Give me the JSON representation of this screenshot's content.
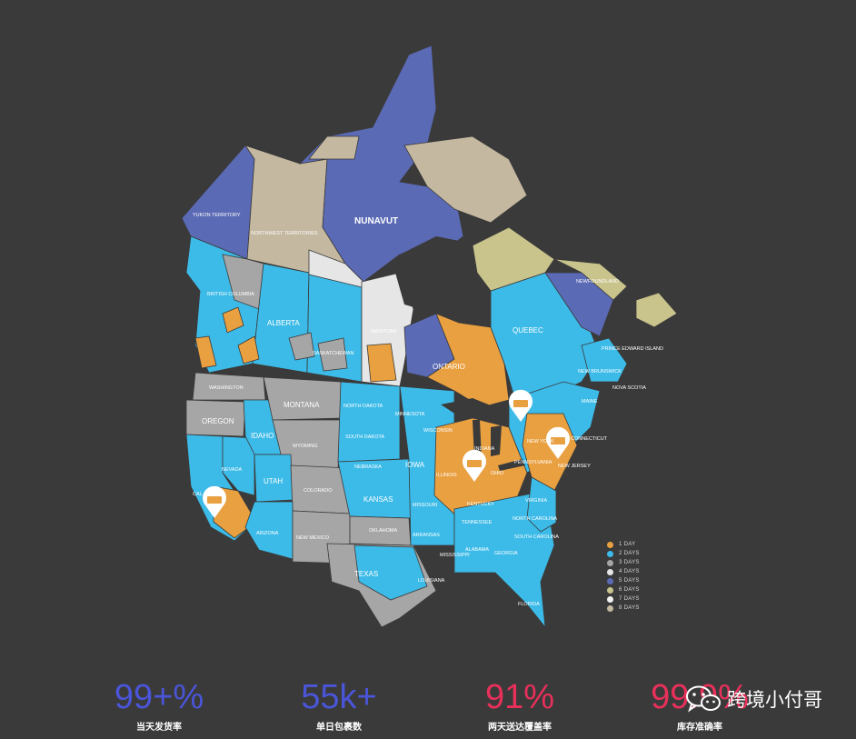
{
  "map": {
    "colors": {
      "day1": "#e9a040",
      "day2": "#3dbbe8",
      "day3": "#a6a6a6",
      "day4": "#e6e6e6",
      "day5": "#5b6ab5",
      "day6": "#c9c38c",
      "day7": "#f3f3f3",
      "day8": "#c4b8a0",
      "border": "#3a3a3a",
      "marker": "#ffffff",
      "marker_icon": "#e9a040"
    },
    "labels": {
      "yukon": "YUKON TERRITORY",
      "nwt": "NORTHWEST TERRITORIES",
      "nunavut": "NUNAVUT",
      "bc": "BRITISH COLUMBIA",
      "alberta": "ALBERTA",
      "sask": "SASKATCHEWAN",
      "manitoba": "MANITOBA",
      "ontario": "ONTARIO",
      "quebec": "QUEBEC",
      "newfoundland": "NEWFOUNDLAND",
      "pei": "PRINCE EDWARD ISLAND",
      "nova_scotia": "NOVA SCOTIA",
      "new_brunswick": "NEW BRUNSWICK",
      "maine": "MAINE",
      "washington": "WASHINGTON",
      "oregon": "OREGON",
      "idaho": "IDAHO",
      "montana": "MONTANA",
      "wyoming": "WYOMING",
      "nevada": "NEVADA",
      "utah": "UTAH",
      "colorado": "COLORADO",
      "arizona": "ARIZONA",
      "new_mexico": "NEW MEXICO",
      "california": "CAL",
      "north_dakota": "NORTH DAKOTA",
      "south_dakota": "SOUTH DAKOTA",
      "nebraska": "NEBRASKA",
      "kansas": "KANSAS",
      "oklahoma": "OKLAHOMA",
      "texas": "TEXAS",
      "minnesota": "MINNESOTA",
      "iowa": "IOWA",
      "missouri": "MISSOURI",
      "arkansas": "ARKANSAS",
      "louisiana": "LOUISIANA",
      "wisconsin": "WISCONSIN",
      "illinois": "ILLINOIS",
      "indiana": "INDIANA",
      "ohio": "OHIO",
      "kentucky": "KENTUCKY",
      "tennessee": "TENNESSEE",
      "mississippi": "MISSISSIPPI",
      "alabama": "ALABAMA",
      "georgia": "GEORGIA",
      "florida": "FLORIDA",
      "south_carolina": "SOUTH CAROLINA",
      "north_carolina": "NORTH CAROLINA",
      "virginia": "VIRGINIA",
      "pennsylvania": "PENNSYLVANIA",
      "new_york": "NEW YORK",
      "new_jersey": "NEW JERSEY",
      "connecticut": "CONNECTICUT"
    }
  },
  "legend": [
    {
      "label": "1 DAY",
      "color": "#e9a040"
    },
    {
      "label": "2 DAYS",
      "color": "#3dbbe8"
    },
    {
      "label": "3 DAYS",
      "color": "#a6a6a6"
    },
    {
      "label": "4 DAYS",
      "color": "#e6e6e6"
    },
    {
      "label": "5 DAYS",
      "color": "#5b6ab5"
    },
    {
      "label": "6 DAYS",
      "color": "#c9c38c"
    },
    {
      "label": "7 DAYS",
      "color": "#f3f3f3"
    },
    {
      "label": "8 DAYS",
      "color": "#c4b8a0"
    }
  ],
  "stats": [
    {
      "value": "99+%",
      "label": "当天发货率",
      "color": "#4a55d8"
    },
    {
      "value": "55k+",
      "label": "单日包裹数",
      "color": "#4a55d8"
    },
    {
      "value": "91%",
      "label": "两天送达覆盖率",
      "color": "#e8305a"
    },
    {
      "value": "99.9%",
      "label": "库存准确率",
      "color": "#e8305a"
    }
  ],
  "watermark": {
    "text": "跨境小付哥",
    "icon": "wechat-icon"
  }
}
